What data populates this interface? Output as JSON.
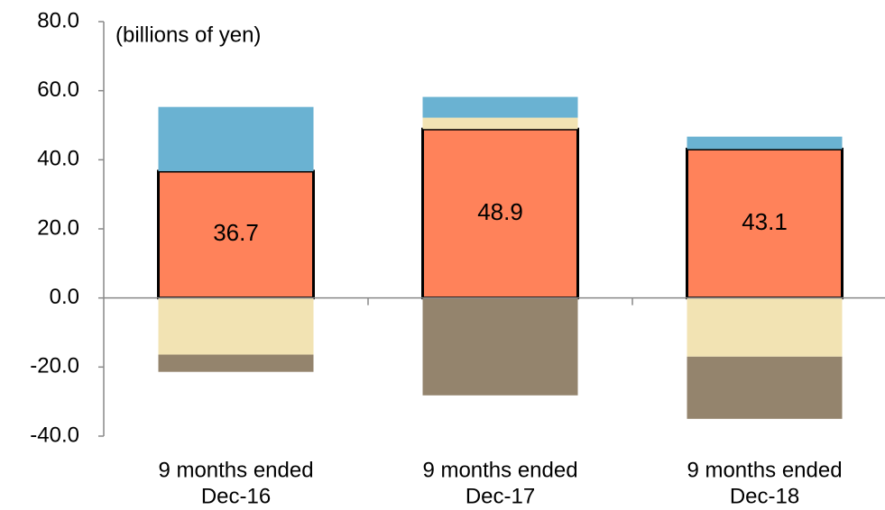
{
  "chart_data": {
    "type": "stacked_bar",
    "annotation": "(billions of yen)",
    "categories": [
      [
        "9 months ended",
        "Dec-16"
      ],
      [
        "9 months ended",
        "Dec-17"
      ],
      [
        "9 months ended",
        "Dec-18"
      ]
    ],
    "series": [
      {
        "color": "#ff825a",
        "values": [
          36.7,
          48.9,
          43.1
        ]
      },
      {
        "color": "#f2e3b3",
        "values": [
          -16.4,
          3.3,
          -17.0
        ]
      },
      {
        "color": "#94846d",
        "values": [
          -5.0,
          -28.2,
          -18.0
        ]
      },
      {
        "color": "#6ab2d2",
        "values": [
          18.6,
          6.0,
          3.6
        ]
      }
    ],
    "ylim": [
      -40,
      80
    ],
    "yticks": [
      {
        "value": -40,
        "label": "-40.0"
      },
      {
        "value": -20,
        "label": "-20.0"
      },
      {
        "value": 0,
        "label": "0.0"
      },
      {
        "value": 20,
        "label": "20.0"
      },
      {
        "value": 40,
        "label": "40.0"
      },
      {
        "value": 60,
        "label": "60.0"
      },
      {
        "value": 80,
        "label": "80.0"
      }
    ]
  }
}
